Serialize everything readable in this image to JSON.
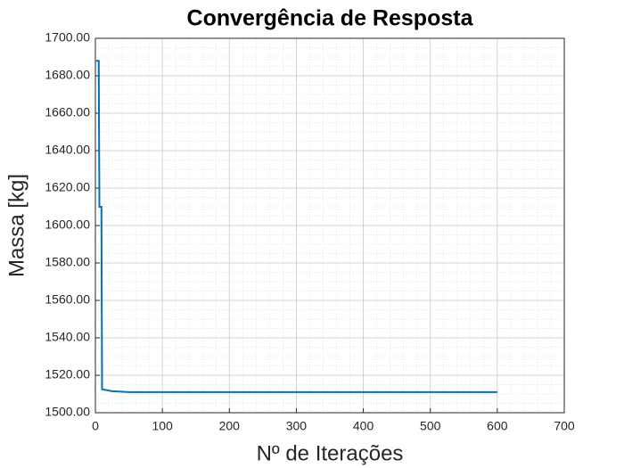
{
  "chart_data": {
    "type": "line",
    "title": "Convergência de Resposta",
    "x_label": "Nº de Iterações",
    "y_label": "Massa [kg]",
    "series": [
      {
        "color": "#0072bd",
        "x": [
          1,
          5,
          6,
          9,
          10,
          18,
          25,
          50,
          600
        ],
        "values": [
          1688,
          1688,
          1610,
          1610,
          1512.5,
          1512,
          1511.5,
          1511,
          1511
        ]
      }
    ],
    "xlim": [
      0,
      700
    ],
    "xticks": [
      0,
      100,
      200,
      300,
      400,
      500,
      600,
      700
    ],
    "ylim": [
      1500,
      1700
    ],
    "yticks": [
      {
        "value": 1500,
        "label": "1500.00"
      },
      {
        "value": 1520,
        "label": "1520.00"
      },
      {
        "value": 1540,
        "label": "1540.00"
      },
      {
        "value": 1560,
        "label": "1560.00"
      },
      {
        "value": 1580,
        "label": "1580.00"
      },
      {
        "value": 1600,
        "label": "1600.00"
      },
      {
        "value": 1620,
        "label": "1620.00"
      },
      {
        "value": 1640,
        "label": "1640.00"
      },
      {
        "value": 1660,
        "label": "1660.00"
      },
      {
        "value": 1680,
        "label": "1680.00"
      },
      {
        "value": 1700,
        "label": "1700.00"
      }
    ],
    "grid": true,
    "minor_grid": true
  }
}
